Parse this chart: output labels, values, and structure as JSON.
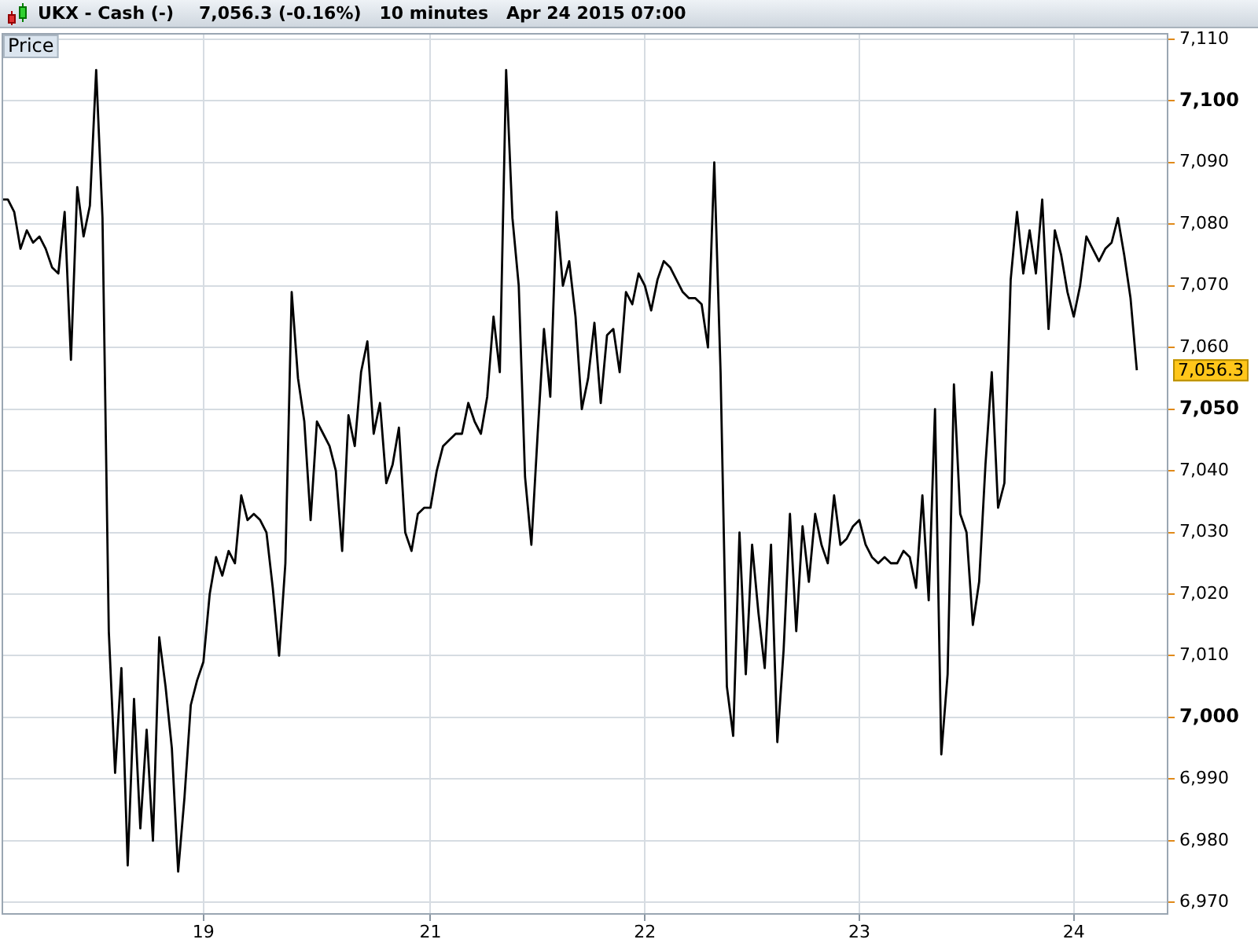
{
  "chart_data": {
    "type": "line",
    "title": "UKX - Cash (-)",
    "subtitle": "7,056.3 (-0.16%)   10 minutes   Apr 24 2015 07:00",
    "ylabel": "Price",
    "categories": [
      null,
      null,
      null,
      null,
      null,
      null,
      null,
      null,
      null,
      null,
      null,
      null,
      null,
      null,
      null,
      null,
      null,
      null,
      null,
      null,
      null,
      null,
      null,
      null,
      null,
      null,
      null,
      null,
      null,
      null,
      null,
      null,
      "19",
      null,
      null,
      null,
      null,
      null,
      null,
      null,
      null,
      null,
      null,
      null,
      null,
      null,
      null,
      null,
      null,
      null,
      null,
      null,
      null,
      null,
      null,
      null,
      null,
      null,
      null,
      null,
      null,
      null,
      null,
      null,
      null,
      null,
      null,
      null,
      "21",
      null,
      null,
      null,
      null,
      null,
      null,
      null,
      null,
      null,
      null,
      null,
      null,
      null,
      null,
      null,
      null,
      null,
      null,
      null,
      null,
      null,
      null,
      null,
      null,
      null,
      null,
      null,
      null,
      null,
      null,
      null,
      null,
      null,
      "22",
      null,
      null,
      null,
      null,
      null,
      null,
      null,
      null,
      null,
      null,
      null,
      null,
      null,
      null,
      null,
      null,
      null,
      null,
      null,
      null,
      null,
      null,
      null,
      null,
      null,
      null,
      null,
      null,
      null,
      null,
      null,
      null,
      null,
      "23",
      null,
      null,
      null,
      null,
      null,
      null,
      null,
      null,
      null,
      null,
      null,
      null,
      null,
      null,
      null,
      null,
      null,
      null,
      null,
      null,
      null,
      null,
      null,
      null,
      null,
      null,
      null,
      null,
      null,
      null,
      null,
      null,
      null,
      "24",
      null,
      null,
      null,
      null,
      null,
      null,
      null,
      null,
      null,
      null,
      null,
      null,
      null,
      null,
      null
    ],
    "values": [
      7084,
      7084,
      7082,
      7076,
      7079,
      7077,
      7078,
      7076,
      7073,
      7072,
      7082,
      7058,
      7086,
      7078,
      7083,
      7105,
      7081,
      7014,
      6991,
      7008,
      6976,
      7003,
      6982,
      6998,
      6980,
      7013,
      7005,
      6995,
      6975,
      6987,
      7002,
      7006,
      7009,
      7020,
      7026,
      7023,
      7027,
      7025,
      7036,
      7032,
      7033,
      7032,
      7030,
      7021,
      7010,
      7025,
      7069,
      7055,
      7048,
      7032,
      7048,
      7046,
      7044,
      7040,
      7027,
      7049,
      7044,
      7056,
      7061,
      7046,
      7051,
      7038,
      7041,
      7047,
      7030,
      7027,
      7033,
      7034,
      7034,
      7040,
      7044,
      7045,
      7046,
      7046,
      7051,
      7048,
      7046,
      7052,
      7065,
      7056,
      7105,
      7081,
      7070,
      7039,
      7028,
      7046,
      7063,
      7052,
      7082,
      7070,
      7074,
      7065,
      7050,
      7055,
      7064,
      7051,
      7062,
      7063,
      7056,
      7069,
      7067,
      7072,
      7070,
      7066,
      7071,
      7074,
      7073,
      7071,
      7069,
      7068,
      7068,
      7067,
      7060,
      7090,
      7056,
      7005,
      6997,
      7030,
      7007,
      7028,
      7017,
      7008,
      7028,
      6996,
      7011,
      7033,
      7014,
      7031,
      7022,
      7033,
      7028,
      7025,
      7036,
      7028,
      7029,
      7031,
      7032,
      7028,
      7026,
      7025,
      7026,
      7025,
      7025,
      7027,
      7026,
      7021,
      7036,
      7019,
      7050,
      6994,
      7007,
      7054,
      7033,
      7030,
      7015,
      7022,
      7041,
      7056,
      7034,
      7038,
      7071,
      7082,
      7072,
      7079,
      7072,
      7084,
      7063,
      7079,
      7075,
      7069,
      7065,
      7070,
      7078,
      7076,
      7074,
      7076,
      7077,
      7081,
      7075,
      7068,
      7056.3,
      null,
      null,
      null,
      null,
      null
    ],
    "color": "#000000",
    "marker": "none",
    "line_style": "solid",
    "ylim": [
      6968,
      7111
    ],
    "yticks": [
      {
        "value": 6970,
        "label": "6,970"
      },
      {
        "value": 6980,
        "label": "6,980"
      },
      {
        "value": 6990,
        "label": "6,990"
      },
      {
        "value": 7000,
        "label": "7,000"
      },
      {
        "value": 7010,
        "label": "7,010"
      },
      {
        "value": 7020,
        "label": "7,020"
      },
      {
        "value": 7030,
        "label": "7,030"
      },
      {
        "value": 7040,
        "label": "7,040"
      },
      {
        "value": 7050,
        "label": "7,050"
      },
      {
        "value": 7060,
        "label": "7,060"
      },
      {
        "value": 7070,
        "label": "7,070"
      },
      {
        "value": 7080,
        "label": "7,080"
      },
      {
        "value": 7090,
        "label": "7,090"
      },
      {
        "value": 7100,
        "label": "7,100"
      },
      {
        "value": 7110,
        "label": "7,110"
      }
    ],
    "grid": true,
    "annotations": [
      "7,056.3"
    ]
  }
}
